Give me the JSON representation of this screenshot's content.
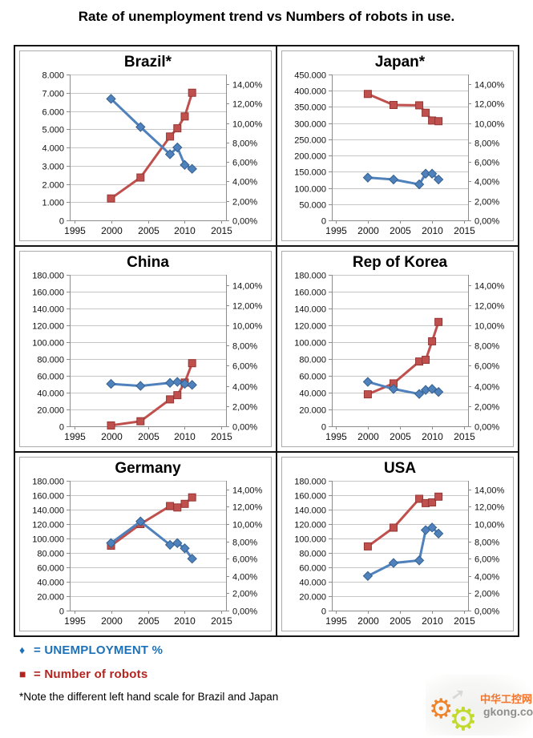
{
  "title": "Rate of unemployment trend vs Numbers of robots in use.",
  "legend": {
    "unemployment_marker": "♦",
    "unemployment_label": "= UNEMPLOYMENT %",
    "robots_marker": "■",
    "robots_label": "= Number of robots",
    "note": "*Note the different left hand scale for Brazil and Japan"
  },
  "watermark": {
    "cn_text": "中华工控网",
    "domain": "gkong.com"
  },
  "colors": {
    "blue": "#4f81bd",
    "blue_border": "#36618e",
    "red": "#c0504d",
    "red_border": "#943634",
    "grid": "#c6c6c6",
    "axis": "#8c8c8c",
    "text": "#111111",
    "legend_blue": "#1c71b8",
    "legend_red": "#b3241f"
  },
  "chart_data": [
    {
      "type": "line",
      "title": "Brazil*",
      "x": [
        2000,
        2004,
        2008,
        2009,
        2010,
        2011
      ],
      "x_ticks": [
        1995,
        2000,
        2005,
        2010,
        2015
      ],
      "x_range": [
        1994.4,
        2015.6
      ],
      "left_axis": {
        "max": 8000,
        "step": 1000
      },
      "right_axis": {
        "ticks": [
          0,
          2,
          4,
          6,
          8,
          10,
          12,
          14
        ],
        "max_effective": 15,
        "suffix": "%"
      },
      "series": [
        {
          "name": "Number of robots",
          "axis": "left",
          "color": "red",
          "marker": "square",
          "values": [
            1200,
            2350,
            4600,
            5050,
            5700,
            7000
          ]
        },
        {
          "name": "UNEMPLOYMENT %",
          "axis": "right",
          "color": "blue",
          "marker": "diamond",
          "values": [
            12.5,
            9.6,
            6.8,
            7.5,
            5.7,
            5.3
          ]
        }
      ]
    },
    {
      "type": "line",
      "title": "Japan*",
      "x": [
        2000,
        2004,
        2008,
        2009,
        2010,
        2011
      ],
      "x_ticks": [
        1995,
        2000,
        2005,
        2010,
        2015
      ],
      "x_range": [
        1994.4,
        2015.6
      ],
      "left_axis": {
        "max": 450000,
        "step": 50000
      },
      "right_axis": {
        "ticks": [
          0,
          2,
          4,
          6,
          8,
          10,
          12,
          14
        ],
        "max_effective": 15,
        "suffix": "%"
      },
      "series": [
        {
          "name": "Number of robots",
          "axis": "left",
          "color": "red",
          "marker": "square",
          "values": [
            390000,
            356000,
            355000,
            332000,
            308000,
            306000
          ]
        },
        {
          "name": "UNEMPLOYMENT %",
          "axis": "right",
          "color": "blue",
          "marker": "diamond",
          "values": [
            4.4,
            4.2,
            3.7,
            4.8,
            4.8,
            4.2
          ]
        }
      ]
    },
    {
      "type": "line",
      "title": "China",
      "x": [
        2000,
        2004,
        2008,
        2009,
        2010,
        2011
      ],
      "x_ticks": [
        1995,
        2000,
        2005,
        2010,
        2015
      ],
      "x_range": [
        1994.4,
        2015.6
      ],
      "left_axis": {
        "max": 180000,
        "step": 20000
      },
      "right_axis": {
        "ticks": [
          0,
          2,
          4,
          6,
          8,
          10,
          12,
          14
        ],
        "max_effective": 15,
        "suffix": "%"
      },
      "series": [
        {
          "name": "Number of robots",
          "axis": "left",
          "color": "red",
          "marker": "square",
          "values": [
            1000,
            6000,
            32000,
            37000,
            52000,
            75000
          ]
        },
        {
          "name": "UNEMPLOYMENT %",
          "axis": "right",
          "color": "blue",
          "marker": "diamond",
          "values": [
            4.2,
            4.0,
            4.3,
            4.4,
            4.2,
            4.1
          ]
        }
      ]
    },
    {
      "type": "line",
      "title": "Rep of Korea",
      "x": [
        2000,
        2004,
        2008,
        2009,
        2010,
        2011
      ],
      "x_ticks": [
        1995,
        2000,
        2005,
        2010,
        2015
      ],
      "x_range": [
        1994.4,
        2015.6
      ],
      "left_axis": {
        "max": 180000,
        "step": 20000
      },
      "right_axis": {
        "ticks": [
          0,
          2,
          4,
          6,
          8,
          10,
          12,
          14
        ],
        "max_effective": 15,
        "suffix": "%"
      },
      "series": [
        {
          "name": "Number of robots",
          "axis": "left",
          "color": "red",
          "marker": "square",
          "values": [
            38000,
            51000,
            77000,
            79000,
            101000,
            124000
          ]
        },
        {
          "name": "UNEMPLOYMENT %",
          "axis": "right",
          "color": "blue",
          "marker": "diamond",
          "values": [
            4.4,
            3.7,
            3.2,
            3.6,
            3.7,
            3.4
          ]
        }
      ]
    },
    {
      "type": "line",
      "title": "Germany",
      "x": [
        2000,
        2004,
        2008,
        2009,
        2010,
        2011
      ],
      "x_ticks": [
        1995,
        2000,
        2005,
        2010,
        2015
      ],
      "x_range": [
        1994.4,
        2015.6
      ],
      "left_axis": {
        "max": 180000,
        "step": 20000
      },
      "right_axis": {
        "ticks": [
          0,
          2,
          4,
          6,
          8,
          10,
          12,
          14
        ],
        "max_effective": 15,
        "suffix": "%"
      },
      "series": [
        {
          "name": "Number of robots",
          "axis": "left",
          "color": "red",
          "marker": "square",
          "values": [
            90000,
            120000,
            145000,
            143000,
            148000,
            157000
          ]
        },
        {
          "name": "UNEMPLOYMENT %",
          "axis": "right",
          "color": "blue",
          "marker": "diamond",
          "values": [
            7.8,
            10.3,
            7.6,
            7.8,
            7.2,
            6.0
          ]
        }
      ]
    },
    {
      "type": "line",
      "title": "USA",
      "x": [
        2000,
        2004,
        2008,
        2009,
        2010,
        2011
      ],
      "x_ticks": [
        1995,
        2000,
        2005,
        2010,
        2015
      ],
      "x_range": [
        1994.4,
        2015.6
      ],
      "left_axis": {
        "max": 180000,
        "step": 20000
      },
      "right_axis": {
        "ticks": [
          0,
          2,
          4,
          6,
          8,
          10,
          12,
          14
        ],
        "max_effective": 15,
        "suffix": "%"
      },
      "series": [
        {
          "name": "Number of robots",
          "axis": "left",
          "color": "red",
          "marker": "square",
          "values": [
            89000,
            115000,
            155000,
            149000,
            150000,
            158000
          ]
        },
        {
          "name": "UNEMPLOYMENT %",
          "axis": "right",
          "color": "blue",
          "marker": "diamond",
          "values": [
            4.0,
            5.5,
            5.8,
            9.3,
            9.6,
            8.9
          ]
        }
      ]
    }
  ]
}
